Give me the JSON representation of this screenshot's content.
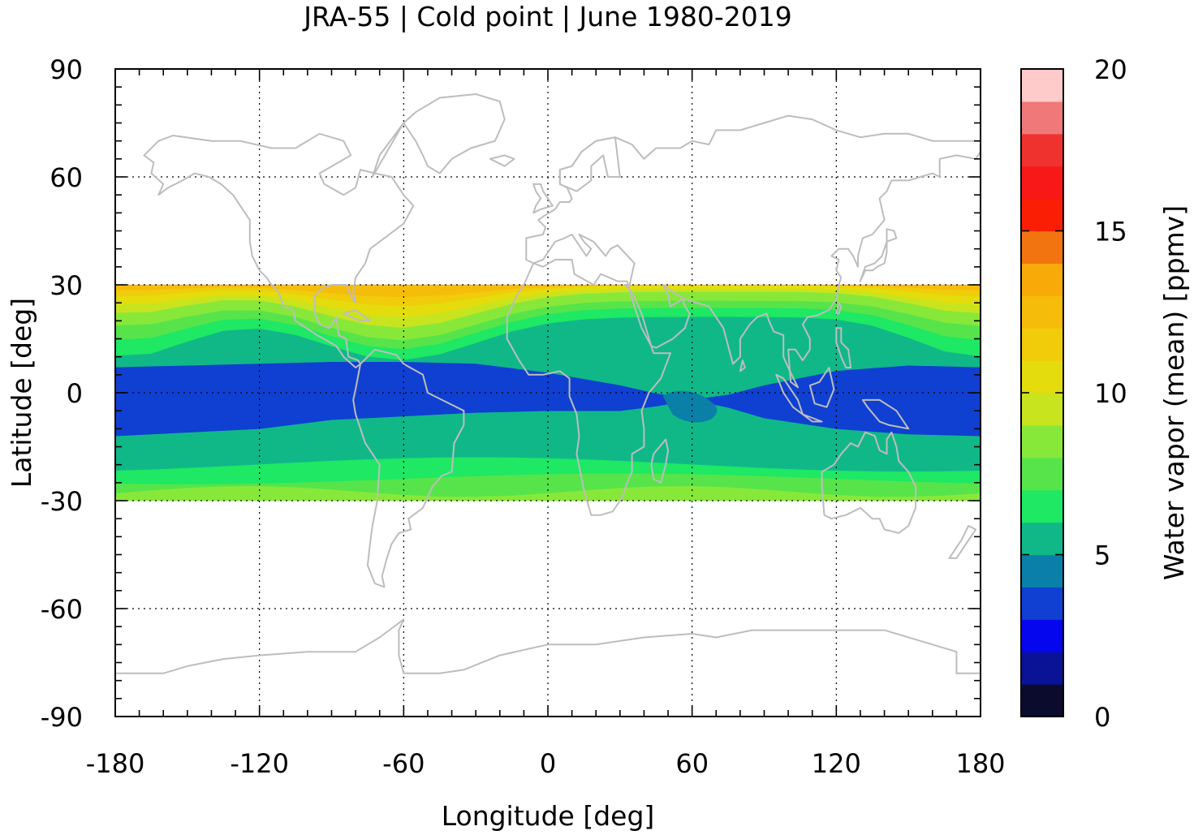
{
  "title": "JRA-55 | Cold point | June 1980-2019",
  "xlabel": "Longitude [deg]",
  "ylabel": "Latitude [deg]",
  "colorbar_label": "Water vapor (mean) [ppmv]",
  "x_ticks": [
    "-180",
    "-120",
    "-60",
    "0",
    "60",
    "120",
    "180"
  ],
  "y_ticks": [
    "90",
    "60",
    "30",
    "0",
    "-30",
    "-60",
    "-90"
  ],
  "colorbar_ticks": [
    "20",
    "15",
    "10",
    "5",
    "0"
  ],
  "colors": {
    "coastline": "#bdbdbd",
    "frame": "#000000",
    "grid": "#000000"
  },
  "chart_data": {
    "type": "heatmap",
    "title": "JRA-55 | Cold point | June 1980-2019",
    "xlabel": "Longitude [deg]",
    "ylabel": "Latitude [deg]",
    "xlim": [
      -180,
      180
    ],
    "ylim": [
      -90,
      90
    ],
    "data_lat_range": [
      -30,
      30
    ],
    "x_ticks": [
      -180,
      -120,
      -60,
      0,
      60,
      120,
      180
    ],
    "y_ticks": [
      90,
      60,
      30,
      0,
      -30,
      -60,
      -90
    ],
    "grid": true,
    "colorbar": {
      "label": "Water vapor (mean) [ppmv]",
      "range": [
        0,
        20
      ],
      "ticks": [
        0,
        5,
        10,
        15,
        20
      ],
      "step": 1,
      "colors": [
        "#0b0b2e",
        "#0a1296",
        "#0505ee",
        "#0f40d2",
        "#0a80a8",
        "#10b888",
        "#1ee864",
        "#56e44a",
        "#88e83a",
        "#c8e41e",
        "#e4dc0c",
        "#f0cc0a",
        "#f6bc0a",
        "#f8aa08",
        "#f27410",
        "#fa1e05",
        "#f81818",
        "#f0322e",
        "#f07878",
        "#ffcaca"
      ]
    },
    "bands": [
      {
        "lon": [
          -180,
          -150,
          -120,
          -90,
          -60,
          -30,
          0,
          30,
          60,
          90,
          120,
          150,
          180
        ],
        "lat": [
          7,
          7.5,
          8,
          8.5,
          8.5,
          8,
          5.5,
          2,
          -2,
          2,
          6,
          7.5,
          7
        ],
        "level": "5-6"
      },
      {
        "lon": [
          -180,
          -150,
          -120,
          -90,
          -60,
          -30,
          0,
          30,
          60,
          90,
          120,
          150,
          180
        ],
        "lat": [
          -12,
          -11,
          -10,
          -7.5,
          -6.5,
          -5.5,
          -5,
          -5,
          -3,
          -7,
          -10,
          -11.5,
          -12
        ],
        "level": "3-4"
      }
    ]
  }
}
